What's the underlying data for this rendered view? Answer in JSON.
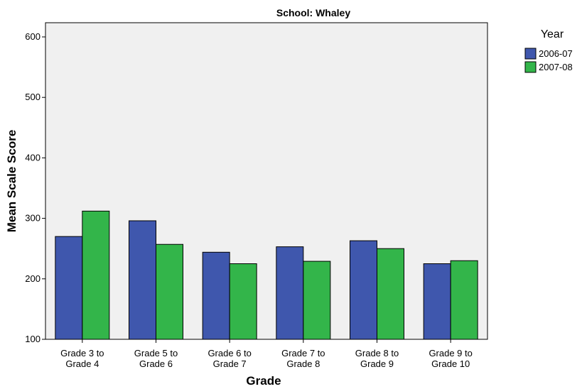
{
  "chart_data": {
    "type": "bar",
    "title": "School: Whaley",
    "xlabel": "Grade",
    "ylabel": "Mean Scale Score",
    "ylim": [
      100,
      625
    ],
    "yticks": [
      100,
      200,
      300,
      400,
      500,
      600
    ],
    "categories": [
      [
        "Grade 3 to",
        "Grade 4"
      ],
      [
        "Grade 5 to",
        "Grade 6"
      ],
      [
        "Grade 6 to",
        "Grade 7"
      ],
      [
        "Grade 7 to",
        "Grade 8"
      ],
      [
        "Grade 8 to",
        "Grade 9"
      ],
      [
        "Grade 9 to",
        "Grade 10"
      ]
    ],
    "legend_title": "Year",
    "legend_position": "right",
    "grid": false,
    "series": [
      {
        "name": "2006-07",
        "color": "#3f57ad",
        "values": [
          270,
          296,
          244,
          253,
          263,
          225
        ]
      },
      {
        "name": "2007-08",
        "color": "#33b54a",
        "values": [
          312,
          257,
          225,
          229,
          250,
          230
        ]
      }
    ],
    "plot_background": "#f0f0f0"
  }
}
